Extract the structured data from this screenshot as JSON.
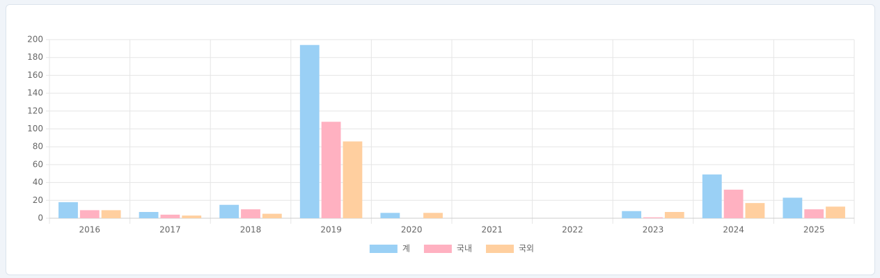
{
  "chart_data": {
    "type": "bar",
    "categories": [
      "2016",
      "2017",
      "2018",
      "2019",
      "2020",
      "2021",
      "2022",
      "2023",
      "2024",
      "2025"
    ],
    "series": [
      {
        "name": "계",
        "color": "#9ad0f5",
        "values": [
          18,
          7,
          15,
          194,
          6,
          0,
          0,
          8,
          49,
          23
        ]
      },
      {
        "name": "국내",
        "color": "#ffb1c1",
        "values": [
          9,
          4,
          10,
          108,
          0,
          0,
          0,
          1,
          32,
          10
        ]
      },
      {
        "name": "국외",
        "color": "#ffcf9f",
        "values": [
          9,
          3,
          5,
          86,
          6,
          0,
          0,
          7,
          17,
          13
        ]
      }
    ],
    "ylim": [
      0,
      200
    ],
    "yticks": [
      0,
      20,
      40,
      60,
      80,
      100,
      120,
      140,
      160,
      180,
      200
    ],
    "grid": true,
    "legend": "bottom"
  }
}
